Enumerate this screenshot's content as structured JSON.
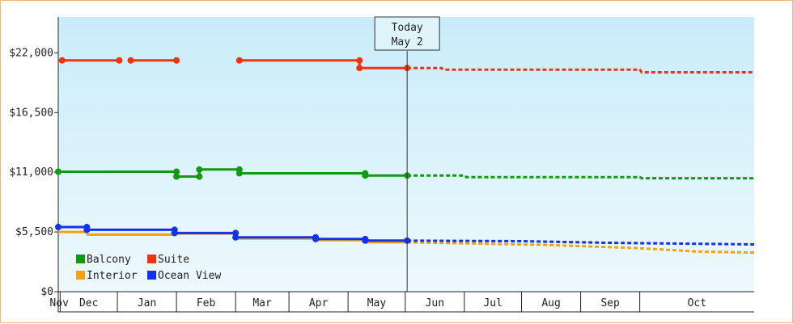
{
  "chart_data": {
    "type": "line",
    "title": "",
    "xlabel": "",
    "ylabel": "",
    "ylim": [
      0,
      25300
    ],
    "y_ticks": [
      0,
      5500,
      11000,
      16500,
      22000
    ],
    "y_tick_labels": [
      "$0",
      "$5,500",
      "$11,000",
      "$16,500",
      "$22,000"
    ],
    "x_axis": "months",
    "x_range": [
      "2024-10-31",
      "2025-10-31"
    ],
    "month_labels": [
      "Nov",
      "Dec",
      "Jan",
      "Feb",
      "Mar",
      "Apr",
      "May",
      "Jun",
      "Jul",
      "Aug",
      "Sep",
      "Oct"
    ],
    "grid": false,
    "legend_position": "bottom-left",
    "today": {
      "line1": "Today",
      "line2": "May 2",
      "date": "2025-05-02"
    },
    "series": [
      {
        "name": "Balcony",
        "color": "#119911",
        "segments": [
          [
            [
              "2024-10-31",
              11050
            ],
            [
              "2025-01-01",
              11050
            ]
          ],
          [
            [
              "2025-01-01",
              10600
            ],
            [
              "2025-01-13",
              10600
            ]
          ],
          [
            [
              "2025-01-13",
              11250
            ],
            [
              "2025-02-03",
              11250
            ]
          ],
          [
            [
              "2025-02-03",
              10900
            ],
            [
              "2025-04-10",
              10900
            ]
          ],
          [
            [
              "2025-04-10",
              10700
            ],
            [
              "2025-05-02",
              10700
            ]
          ]
        ],
        "markers": [
          [
            "2024-10-31",
            11050
          ],
          [
            "2025-01-01",
            11050
          ],
          [
            "2025-01-01",
            10600
          ],
          [
            "2025-01-13",
            10600
          ],
          [
            "2025-01-13",
            11250
          ],
          [
            "2025-02-03",
            11250
          ],
          [
            "2025-02-03",
            10900
          ],
          [
            "2025-04-10",
            10900
          ],
          [
            "2025-04-10",
            10700
          ],
          [
            "2025-05-02",
            10700
          ]
        ],
        "forecast": [
          [
            "2025-05-02",
            10700
          ],
          [
            "2025-06-01",
            10700
          ],
          [
            "2025-06-02",
            10550
          ],
          [
            "2025-09-01",
            10550
          ],
          [
            "2025-09-02",
            10450
          ],
          [
            "2025-10-31",
            10450
          ]
        ]
      },
      {
        "name": "Suite",
        "color": "#ee3311",
        "segments": [
          [
            [
              "2024-11-02",
              21300
            ],
            [
              "2024-12-02",
              21300
            ]
          ],
          [
            [
              "2024-12-08",
              21300
            ],
            [
              "2025-01-01",
              21300
            ]
          ],
          [
            [
              "2025-02-03",
              21300
            ],
            [
              "2025-04-07",
              21300
            ]
          ],
          [
            [
              "2025-04-07",
              20600
            ],
            [
              "2025-05-02",
              20600
            ]
          ]
        ],
        "markers": [
          [
            "2024-11-02",
            21300
          ],
          [
            "2024-12-02",
            21300
          ],
          [
            "2024-12-08",
            21300
          ],
          [
            "2025-01-01",
            21300
          ],
          [
            "2025-02-03",
            21300
          ],
          [
            "2025-04-07",
            21300
          ],
          [
            "2025-04-07",
            20600
          ],
          [
            "2025-05-02",
            20600
          ]
        ],
        "forecast": [
          [
            "2025-05-02",
            20600
          ],
          [
            "2025-05-20",
            20600
          ],
          [
            "2025-05-21",
            20450
          ],
          [
            "2025-09-01",
            20450
          ],
          [
            "2025-09-02",
            20200
          ],
          [
            "2025-10-31",
            20200
          ]
        ]
      },
      {
        "name": "Interior",
        "color": "#f5a211",
        "segments": [
          [
            [
              "2024-10-31",
              5500
            ],
            [
              "2024-11-15",
              5500
            ]
          ],
          [
            [
              "2024-11-15",
              5250
            ],
            [
              "2024-12-31",
              5250
            ]
          ],
          [
            [
              "2024-12-31",
              5350
            ],
            [
              "2025-02-01",
              5350
            ]
          ],
          [
            [
              "2025-02-01",
              4900
            ],
            [
              "2025-03-15",
              4900
            ]
          ],
          [
            [
              "2025-03-15",
              4750
            ],
            [
              "2025-04-10",
              4750
            ]
          ],
          [
            [
              "2025-04-10",
              4550
            ],
            [
              "2025-05-02",
              4550
            ]
          ]
        ],
        "markers": [],
        "forecast": [
          [
            "2025-05-02",
            4550
          ],
          [
            "2025-07-15",
            4300
          ],
          [
            "2025-09-01",
            4000
          ],
          [
            "2025-10-01",
            3700
          ],
          [
            "2025-10-31",
            3600
          ]
        ]
      },
      {
        "name": "Ocean View",
        "color": "#1133ee",
        "segments": [
          [
            [
              "2024-10-31",
              5950
            ],
            [
              "2024-11-15",
              5950
            ]
          ],
          [
            [
              "2024-11-15",
              5700
            ],
            [
              "2024-12-31",
              5700
            ]
          ],
          [
            [
              "2024-12-31",
              5400
            ],
            [
              "2025-02-01",
              5400
            ]
          ],
          [
            [
              "2025-02-01",
              5000
            ],
            [
              "2025-03-15",
              5000
            ]
          ],
          [
            [
              "2025-03-15",
              4850
            ],
            [
              "2025-04-10",
              4850
            ]
          ],
          [
            [
              "2025-04-10",
              4700
            ],
            [
              "2025-05-02",
              4700
            ]
          ]
        ],
        "markers": [
          [
            "2024-10-31",
            5950
          ],
          [
            "2024-11-15",
            5950
          ],
          [
            "2024-11-15",
            5700
          ],
          [
            "2024-12-31",
            5700
          ],
          [
            "2024-12-31",
            5400
          ],
          [
            "2025-02-01",
            5400
          ],
          [
            "2025-02-01",
            5000
          ],
          [
            "2025-03-15",
            5000
          ],
          [
            "2025-03-15",
            4850
          ],
          [
            "2025-04-10",
            4850
          ],
          [
            "2025-04-10",
            4700
          ],
          [
            "2025-05-02",
            4700
          ]
        ],
        "forecast": [
          [
            "2025-05-02",
            4700
          ],
          [
            "2025-07-01",
            4650
          ],
          [
            "2025-08-15",
            4500
          ],
          [
            "2025-10-31",
            4350
          ]
        ]
      }
    ]
  }
}
